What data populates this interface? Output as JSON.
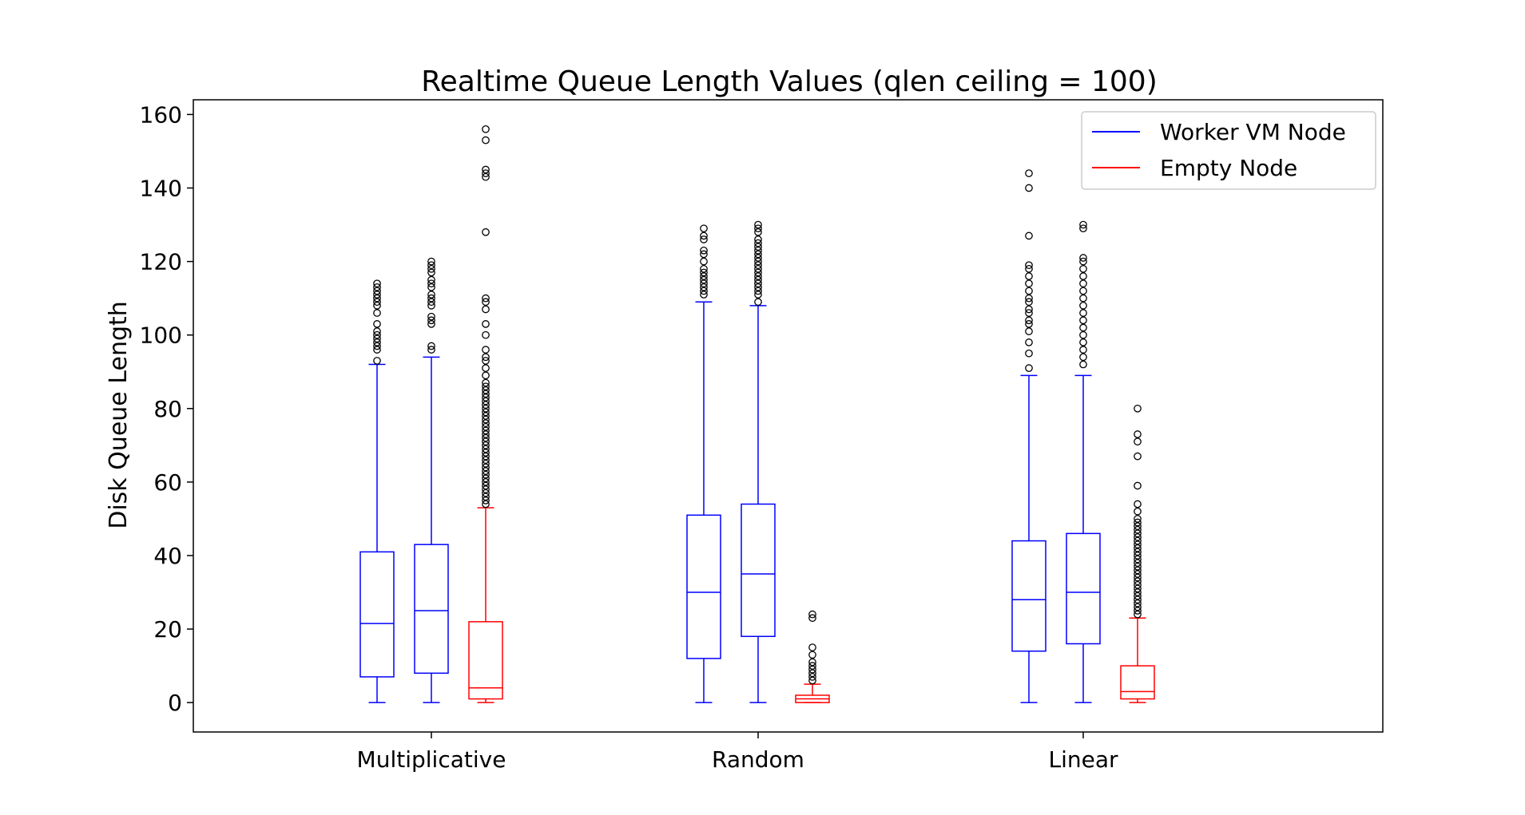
{
  "chart_data": {
    "type": "box",
    "title": "Realtime Queue Length Values (qlen ceiling = 100)",
    "xlabel": "",
    "ylabel": "Disk Queue Length",
    "ylim": [
      -8,
      164
    ],
    "yticks": [
      0,
      20,
      40,
      60,
      80,
      100,
      120,
      140,
      160
    ],
    "grid": false,
    "legend_position": "top-right",
    "categories": [
      "Multiplicative",
      "Random",
      "Linear"
    ],
    "legend": [
      {
        "label": "Worker VM Node",
        "color": "#0000ff"
      },
      {
        "label": "Empty Node",
        "color": "#ff0000"
      }
    ],
    "boxes": [
      {
        "category": "Multiplicative",
        "series": "Worker VM Node",
        "color": "#0000ff",
        "whisker_low": 0,
        "q1": 7,
        "median": 21.5,
        "q3": 41,
        "whisker_high": 92,
        "outliers": [
          93,
          96,
          97,
          98,
          99,
          100,
          101,
          103,
          106,
          108,
          109,
          110,
          111,
          112,
          113,
          114
        ]
      },
      {
        "category": "Multiplicative",
        "series": "Worker VM Node",
        "color": "#0000ff",
        "whisker_low": 0,
        "q1": 8,
        "median": 25,
        "q3": 43,
        "whisker_high": 94,
        "outliers": [
          96,
          97,
          103,
          104,
          105,
          108,
          109,
          110,
          111,
          113,
          114,
          115,
          117,
          118,
          119,
          120
        ]
      },
      {
        "category": "Multiplicative",
        "series": "Empty Node",
        "color": "#ff0000",
        "whisker_low": 0,
        "q1": 1,
        "median": 4,
        "q3": 22,
        "whisker_high": 53,
        "outliers": [
          54,
          55,
          56,
          57,
          58,
          59,
          60,
          61,
          62,
          63,
          64,
          65,
          66,
          67,
          68,
          69,
          70,
          71,
          72,
          73,
          74,
          75,
          76,
          77,
          78,
          79,
          80,
          81,
          82,
          83,
          84,
          85,
          86,
          87,
          89,
          91,
          93,
          94,
          96,
          100,
          103,
          107,
          109,
          110,
          128,
          143,
          144,
          145,
          153,
          156
        ]
      },
      {
        "category": "Random",
        "series": "Worker VM Node",
        "color": "#0000ff",
        "whisker_low": 0,
        "q1": 12,
        "median": 30,
        "q3": 51,
        "whisker_high": 109,
        "outliers": [
          111,
          112,
          113,
          114,
          115,
          116,
          117,
          118,
          120,
          122,
          123,
          126,
          127,
          129
        ]
      },
      {
        "category": "Random",
        "series": "Worker VM Node",
        "color": "#0000ff",
        "whisker_low": 0,
        "q1": 18,
        "median": 35,
        "q3": 54,
        "whisker_high": 108,
        "outliers": [
          109,
          111,
          112,
          113,
          114,
          115,
          116,
          117,
          118,
          119,
          120,
          121,
          122,
          123,
          124,
          125,
          126,
          128,
          129,
          130
        ]
      },
      {
        "category": "Random",
        "series": "Empty Node",
        "color": "#ff0000",
        "whisker_low": 0,
        "q1": 0,
        "median": 1,
        "q3": 2,
        "whisker_high": 5,
        "outliers": [
          6,
          7,
          8,
          9,
          10,
          11,
          13,
          15,
          23,
          24
        ]
      },
      {
        "category": "Linear",
        "series": "Worker VM Node",
        "color": "#0000ff",
        "whisker_low": 0,
        "q1": 14,
        "median": 28,
        "q3": 44,
        "whisker_high": 89,
        "outliers": [
          91,
          95,
          98,
          101,
          103,
          104,
          106,
          107,
          109,
          110,
          112,
          114,
          116,
          118,
          119,
          127,
          140,
          144
        ]
      },
      {
        "category": "Linear",
        "series": "Worker VM Node",
        "color": "#0000ff",
        "whisker_low": 0,
        "q1": 16,
        "median": 30,
        "q3": 46,
        "whisker_high": 89,
        "outliers": [
          92,
          94,
          96,
          98,
          100,
          102,
          104,
          106,
          108,
          110,
          112,
          114,
          116,
          118,
          120,
          121,
          129,
          130
        ]
      },
      {
        "category": "Linear",
        "series": "Empty Node",
        "color": "#ff0000",
        "whisker_low": 0,
        "q1": 1,
        "median": 3,
        "q3": 10,
        "whisker_high": 23,
        "outliers": [
          24,
          25,
          26,
          27,
          28,
          29,
          30,
          31,
          32,
          33,
          34,
          35,
          36,
          37,
          38,
          39,
          40,
          41,
          42,
          43,
          44,
          45,
          46,
          47,
          48,
          49,
          50,
          52,
          54,
          59,
          67,
          71,
          73,
          80
        ]
      }
    ]
  }
}
